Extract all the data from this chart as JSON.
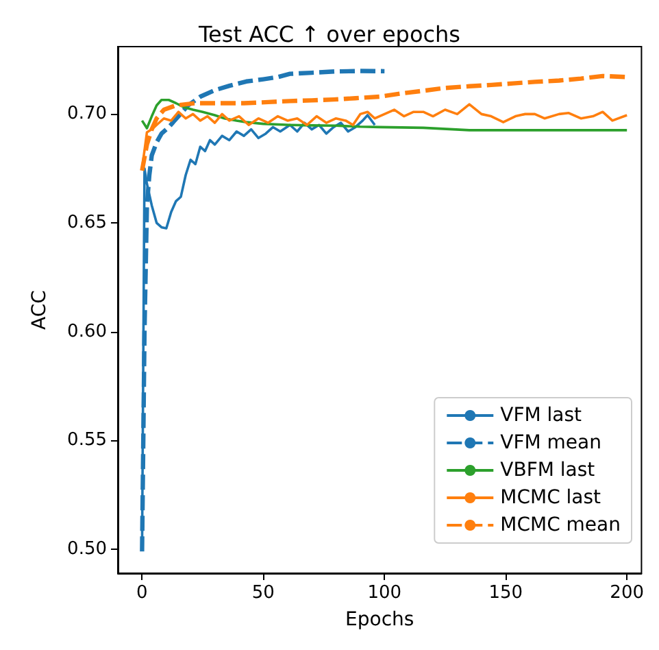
{
  "chart_data": {
    "type": "line",
    "title": "Test ACC ↑ over epochs",
    "xlabel": "Epochs",
    "ylabel": "ACC",
    "xlim": [
      -10,
      206
    ],
    "xticks": [
      0,
      50,
      100,
      150,
      200
    ],
    "ylim": [
      0.489,
      0.731
    ],
    "yticks": [
      {
        "value": 0.5,
        "label": "0.50"
      },
      {
        "value": 0.55,
        "label": "0.55"
      },
      {
        "value": 0.6,
        "label": "0.60"
      },
      {
        "value": 0.65,
        "label": "0.65"
      },
      {
        "value": 0.7,
        "label": "0.70"
      }
    ],
    "grid": false,
    "legend": "bottom right",
    "marker": "none",
    "series": [
      {
        "name": "VFM last",
        "color": "#1f77b4",
        "line_style": "solid",
        "x": [
          0,
          1,
          2,
          4,
          6,
          8,
          10,
          12,
          14,
          16,
          18,
          20,
          22,
          24,
          26,
          28,
          30,
          33,
          36,
          39,
          42,
          45,
          48,
          51,
          54,
          57,
          61,
          64,
          67,
          70,
          73,
          76,
          79,
          82,
          85,
          88,
          91,
          93,
          96
        ],
        "values": [
          0.5,
          0.675,
          0.668,
          0.658,
          0.65,
          0.648,
          0.6475,
          0.655,
          0.66,
          0.662,
          0.672,
          0.679,
          0.677,
          0.685,
          0.683,
          0.688,
          0.686,
          0.69,
          0.688,
          0.692,
          0.69,
          0.693,
          0.689,
          0.691,
          0.694,
          0.692,
          0.695,
          0.692,
          0.696,
          0.693,
          0.695,
          0.691,
          0.694,
          0.696,
          0.692,
          0.694,
          0.697,
          0.6995,
          0.695
        ]
      },
      {
        "name": "VFM mean",
        "color": "#1f77b4",
        "line_style": "dashed",
        "x": [
          0,
          1,
          2,
          3,
          4,
          6,
          8,
          11,
          15,
          19,
          24,
          30,
          36,
          43,
          50,
          56,
          61,
          70,
          80,
          90,
          100
        ],
        "values": [
          0.499,
          0.6,
          0.658,
          0.672,
          0.681,
          0.687,
          0.691,
          0.694,
          0.699,
          0.704,
          0.708,
          0.711,
          0.713,
          0.715,
          0.716,
          0.717,
          0.7185,
          0.719,
          0.7196,
          0.7198,
          0.7197
        ]
      },
      {
        "name": "VBFM last",
        "color": "#2ca02c",
        "line_style": "solid",
        "x": [
          0,
          2,
          4,
          6,
          8,
          11,
          14,
          17,
          21,
          25,
          30,
          34,
          39,
          43,
          50,
          61,
          70,
          80,
          90,
          98,
          116,
          135,
          150,
          172,
          185,
          200
        ],
        "values": [
          0.697,
          0.6935,
          0.699,
          0.704,
          0.7065,
          0.7065,
          0.705,
          0.7033,
          0.702,
          0.701,
          0.6995,
          0.698,
          0.697,
          0.6963,
          0.6955,
          0.695,
          0.6948,
          0.6947,
          0.6942,
          0.694,
          0.6937,
          0.6926,
          0.6926,
          0.6926,
          0.6926,
          0.6926
        ]
      },
      {
        "name": "MCMC last",
        "color": "#ff7f0e",
        "line_style": "solid",
        "x": [
          0,
          2,
          4,
          6,
          9,
          12,
          15,
          18,
          21,
          24,
          27,
          30,
          33,
          36,
          40,
          44,
          48,
          52,
          56,
          60,
          64,
          68,
          72,
          76,
          80,
          84,
          87,
          90,
          93,
          96,
          100,
          104,
          108,
          112,
          116,
          120,
          125,
          130,
          135,
          140,
          144,
          149,
          154,
          158,
          162,
          166,
          172,
          176,
          181,
          186,
          190,
          194,
          200
        ],
        "values": [
          0.675,
          0.6916,
          0.693,
          0.695,
          0.698,
          0.697,
          0.701,
          0.698,
          0.7,
          0.697,
          0.699,
          0.696,
          0.7,
          0.697,
          0.699,
          0.695,
          0.698,
          0.696,
          0.699,
          0.697,
          0.698,
          0.695,
          0.699,
          0.696,
          0.698,
          0.697,
          0.695,
          0.7,
          0.701,
          0.698,
          0.7,
          0.702,
          0.699,
          0.701,
          0.701,
          0.699,
          0.702,
          0.7,
          0.7045,
          0.7,
          0.699,
          0.6963,
          0.699,
          0.7,
          0.7,
          0.698,
          0.7,
          0.7005,
          0.698,
          0.699,
          0.701,
          0.697,
          0.6995
        ]
      },
      {
        "name": "MCMC mean",
        "color": "#ff7f0e",
        "line_style": "dashed",
        "x": [
          0,
          2,
          4,
          6,
          9,
          14,
          22,
          32,
          42,
          52,
          61,
          70,
          79,
          88,
          98,
          107,
          116,
          125,
          135,
          144,
          153,
          162,
          172,
          181,
          190,
          200
        ],
        "values": [
          0.674,
          0.686,
          0.693,
          0.698,
          0.702,
          0.704,
          0.705,
          0.705,
          0.705,
          0.7055,
          0.706,
          0.7063,
          0.7067,
          0.7073,
          0.708,
          0.7095,
          0.7107,
          0.712,
          0.7128,
          0.7134,
          0.7141,
          0.7148,
          0.7154,
          0.7163,
          0.7175,
          0.717
        ]
      }
    ]
  }
}
